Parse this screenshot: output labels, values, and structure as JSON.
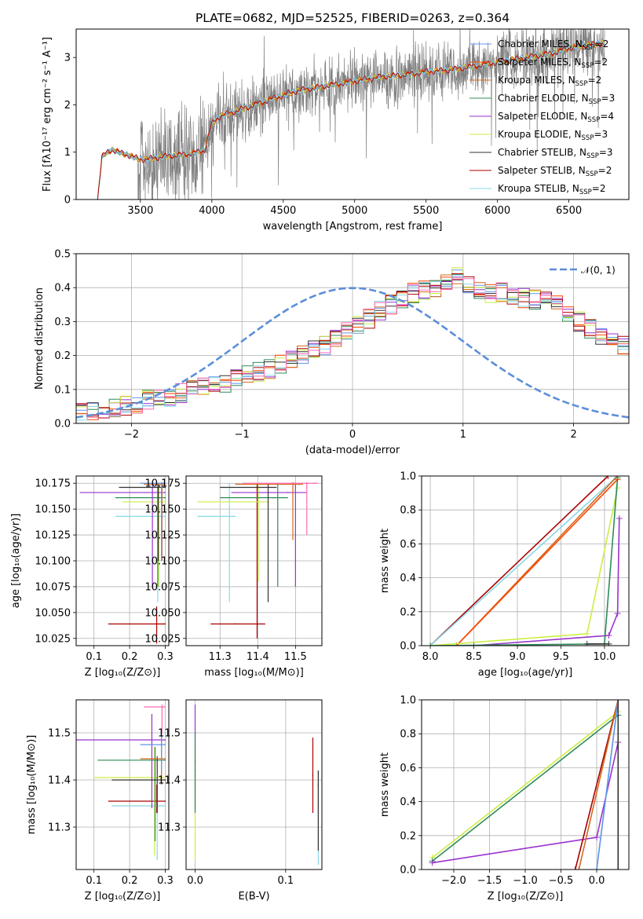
{
  "figure_title": "PLATE=0682, MJD=52525, FIBERID=0263, z=0.364",
  "colors": {
    "chabrier_miles": "#6495ed",
    "salpeter_miles": "#ff4500",
    "kroupa_miles": "#d2691e",
    "chabrier_elodie": "#2e8b57",
    "salpeter_elodie": "#9932cc",
    "kroupa_elodie": "#ccee44",
    "chabrier_stelib": "#333333",
    "salpeter_stelib": "#aa0000",
    "kroupa_stelib": "#88d8e8",
    "pink": "#ff69b4",
    "teal": "#5f9ea0",
    "data_gray": "#808080",
    "normal": "#5b8ed9"
  },
  "chart_data": [
    {
      "id": "spectrum",
      "type": "line",
      "title": "PLATE=0682, MJD=52525, FIBERID=0263, z=0.364",
      "xlabel": "wavelength [Angstrom, rest frame]",
      "ylabel": "Flux [fλ10⁻¹⁷ erg cm⁻² s⁻¹ A⁻¹]",
      "xlim": [
        3050,
        6920
      ],
      "ylim": [
        0,
        3.6
      ],
      "xticks": [
        3500,
        4000,
        4500,
        5000,
        5500,
        6000,
        6500
      ],
      "yticks": [
        0,
        1,
        2,
        3
      ],
      "data_range": [
        3200,
        6750
      ],
      "legend_position": "top-right",
      "series": [
        {
          "name": "Chabrier MILES, N",
          "sub": "SSP",
          "suffix": "=2",
          "color_key": "chabrier_miles"
        },
        {
          "name": "Salpeter MILES, N",
          "sub": "SSP",
          "suffix": "=2",
          "color_key": "salpeter_miles"
        },
        {
          "name": "Kroupa MILES, N",
          "sub": "SSP",
          "suffix": "=2",
          "color_key": "kroupa_miles"
        },
        {
          "name": "Chabrier ELODIE, N",
          "sub": "SSP",
          "suffix": "=3",
          "color_key": "chabrier_elodie"
        },
        {
          "name": "Salpeter ELODIE, N",
          "sub": "SSP",
          "suffix": "=4",
          "color_key": "salpeter_elodie"
        },
        {
          "name": "Kroupa ELODIE, N",
          "sub": "SSP",
          "suffix": "=3",
          "color_key": "kroupa_elodie"
        },
        {
          "name": "Chabrier STELIB, N",
          "sub": "SSP",
          "suffix": "=3",
          "color_key": "chabrier_stelib"
        },
        {
          "name": "Salpeter STELIB, N",
          "sub": "SSP",
          "suffix": "=2",
          "color_key": "salpeter_stelib"
        },
        {
          "name": "Kroupa STELIB, N",
          "sub": "SSP",
          "suffix": "=2",
          "color_key": "kroupa_stelib"
        }
      ],
      "model_continuum": {
        "x": [
          3200,
          3230,
          3260,
          3300,
          3350,
          3400,
          3450,
          3500,
          3550,
          3600,
          3700,
          3800,
          3900,
          3950,
          4000,
          4050,
          4100,
          4200,
          4300,
          4400,
          4500,
          4600,
          4700,
          4800,
          4900,
          5000,
          5100,
          5200,
          5300,
          5400,
          5500,
          5600,
          5700,
          5800,
          5900,
          6000,
          6100,
          6200,
          6300,
          6400,
          6500,
          6600,
          6750
        ],
        "y": [
          0.0,
          0.9,
          0.98,
          1.05,
          1.0,
          0.95,
          0.9,
          0.85,
          0.85,
          0.88,
          0.92,
          0.95,
          1.0,
          1.05,
          1.6,
          1.75,
          1.8,
          1.9,
          2.0,
          2.1,
          2.2,
          2.3,
          2.35,
          2.4,
          2.45,
          2.5,
          2.55,
          2.6,
          2.62,
          2.65,
          2.7,
          2.72,
          2.75,
          2.8,
          2.85,
          2.9,
          2.95,
          3.0,
          3.05,
          3.1,
          3.2,
          3.25,
          3.3
        ]
      }
    },
    {
      "id": "residuals",
      "type": "line",
      "xlabel": "(data-model)/error",
      "ylabel": "Normed distribution",
      "xlim": [
        -2.5,
        2.5
      ],
      "ylim": [
        0,
        0.5
      ],
      "xticks": [
        -2,
        -1,
        0,
        1,
        2
      ],
      "yticks": [
        0.0,
        0.1,
        0.2,
        0.3,
        0.4,
        0.5
      ],
      "grid": true,
      "legend_position": "top-right",
      "legend": "𝒩(0, 1)",
      "bin_width": 0.1,
      "bin_start": -2.5,
      "histogram_base": [
        0.03,
        0.035,
        0.04,
        0.045,
        0.05,
        0.06,
        0.07,
        0.075,
        0.08,
        0.09,
        0.1,
        0.105,
        0.11,
        0.12,
        0.13,
        0.14,
        0.15,
        0.16,
        0.175,
        0.19,
        0.2,
        0.215,
        0.23,
        0.25,
        0.27,
        0.29,
        0.31,
        0.33,
        0.35,
        0.37,
        0.385,
        0.395,
        0.4,
        0.41,
        0.43,
        0.41,
        0.39,
        0.38,
        0.385,
        0.375,
        0.37,
        0.365,
        0.36,
        0.35,
        0.33,
        0.3,
        0.28,
        0.26,
        0.245,
        0.23,
        0.22,
        0.21,
        0.2,
        0.19,
        0.175,
        0.16,
        0.15,
        0.13,
        0.12,
        0.11,
        0.1,
        0.09,
        0.08,
        0.075,
        0.07,
        0.065,
        0.055,
        0.045,
        0.04,
        0.035,
        0.03,
        0.035,
        0.03,
        0.025,
        0.025,
        0.02,
        0.02,
        0.02,
        0.02,
        0.02
      ]
    },
    {
      "id": "age_vs_z",
      "type": "scatter",
      "xlabel": "Z [log₁₀(Z/Z⊙)]",
      "ylabel": "age  [log₁₀(age/yr)]",
      "xlim": [
        0.05,
        0.31
      ],
      "ylim": [
        10.018,
        10.182
      ],
      "xticks": [
        0.1,
        0.2,
        0.3
      ],
      "yticks": [
        10.025,
        10.05,
        10.075,
        10.1,
        10.125,
        10.15,
        10.175
      ],
      "grid": true,
      "points": [
        {
          "x": 0.3,
          "y": 10.039,
          "xerr": [
            0.14,
            0.3
          ],
          "yerr": [
            10.02,
            10.056
          ],
          "color_key": "salpeter_stelib"
        },
        {
          "x": 0.3,
          "y": 10.143,
          "xerr": [
            0.16,
            0.3
          ],
          "yerr": [
            10.06,
            10.175
          ],
          "color_key": "kroupa_stelib"
        },
        {
          "x": 0.3,
          "y": 10.157,
          "xerr": [
            0.18,
            0.3
          ],
          "yerr": [
            10.075,
            10.175
          ],
          "color_key": "kroupa_elodie"
        },
        {
          "x": 0.3,
          "y": 10.161,
          "xerr": [
            0.16,
            0.3
          ],
          "yerr": [
            10.075,
            10.175
          ],
          "color_key": "chabrier_elodie"
        },
        {
          "x": 0.3,
          "y": 10.166,
          "xerr": [
            0.06,
            0.3
          ],
          "yerr": [
            10.074,
            10.175
          ],
          "color_key": "salpeter_elodie"
        },
        {
          "x": 0.3,
          "y": 10.171,
          "xerr": [
            0.17,
            0.3
          ],
          "yerr": [
            10.1,
            10.175
          ],
          "color_key": "chabrier_stelib"
        },
        {
          "x": 0.3,
          "y": 10.174,
          "xerr": [
            0.24,
            0.3
          ],
          "yerr": [
            10.1,
            10.176
          ],
          "color_key": "kroupa_miles"
        },
        {
          "x": 0.3,
          "y": 10.175,
          "xerr": [
            0.23,
            0.3
          ],
          "yerr": [
            10.1,
            10.176
          ],
          "color_key": "chabrier_miles"
        }
      ]
    },
    {
      "id": "age_vs_mass",
      "type": "scatter",
      "xlabel": "mass [log₁₀(M/M⊙)]",
      "ylabel": "",
      "xlim": [
        11.21,
        11.57
      ],
      "ylim": [
        10.018,
        10.182
      ],
      "xticks": [
        11.3,
        11.4,
        11.5
      ],
      "yticks": [
        10.025,
        10.05,
        10.075,
        10.1,
        10.125,
        10.15,
        10.175
      ],
      "grid": true,
      "points": [
        {
          "x": 11.34,
          "y": 10.039,
          "xerr": [
            11.275,
            11.42
          ],
          "yerr": [
            10.025,
            10.175
          ],
          "color_key": "salpeter_stelib"
        },
        {
          "x": 11.34,
          "y": 10.143,
          "xerr": [
            11.24,
            11.34
          ],
          "yerr": [
            10.06,
            10.175
          ],
          "color_key": "kroupa_stelib"
        },
        {
          "x": 11.38,
          "y": 10.157,
          "xerr": [
            11.24,
            11.43
          ],
          "yerr": [
            10.08,
            10.175
          ],
          "color_key": "kroupa_elodie"
        },
        {
          "x": 11.44,
          "y": 10.161,
          "xerr": [
            11.3,
            11.48
          ],
          "yerr": [
            10.075,
            10.175
          ],
          "color_key": "chabrier_elodie"
        },
        {
          "x": 11.48,
          "y": 10.166,
          "xerr": [
            11.33,
            11.53
          ],
          "yerr": [
            10.075,
            10.175
          ],
          "color_key": "salpeter_elodie"
        },
        {
          "x": 11.4,
          "y": 10.171,
          "xerr": [
            11.3,
            11.45
          ],
          "yerr": [
            10.06,
            10.175
          ],
          "color_key": "chabrier_stelib"
        },
        {
          "x": 11.51,
          "y": 10.174,
          "xerr": [
            11.34,
            11.52
          ],
          "yerr": [
            10.12,
            10.176
          ],
          "color_key": "kroupa_miles"
        },
        {
          "x": 11.55,
          "y": 10.175,
          "xerr": [
            11.36,
            11.56
          ],
          "yerr": [
            10.125,
            10.176
          ],
          "color_key": "pink"
        }
      ]
    },
    {
      "id": "weight_vs_age",
      "type": "line",
      "xlabel": "age  [log₁₀(age/yr)]",
      "ylabel": "mass weight",
      "xlim": [
        7.9,
        10.28
      ],
      "ylim": [
        0,
        1.0
      ],
      "xticks": [
        8.0,
        8.5,
        9.0,
        9.5,
        10.0
      ],
      "yticks": [
        0.0,
        0.2,
        0.4,
        0.6,
        0.8,
        1.0
      ],
      "grid": true,
      "series": [
        {
          "color_key": "salpeter_stelib",
          "x": [
            8.0,
            10.04
          ],
          "y": [
            0.0,
            1.0
          ]
        },
        {
          "color_key": "kroupa_stelib",
          "x": [
            8.0,
            10.15
          ],
          "y": [
            0.0,
            1.0
          ]
        },
        {
          "color_key": "kroupa_miles",
          "x": [
            8.3,
            10.15
          ],
          "y": [
            0.0,
            1.0
          ]
        },
        {
          "color_key": "salpeter_miles",
          "x": [
            8.3,
            10.15
          ],
          "y": [
            0.0,
            0.98
          ]
        },
        {
          "color_key": "kroupa_elodie",
          "x": [
            8.0,
            9.8,
            10.15
          ],
          "y": [
            0.0,
            0.07,
            0.93
          ]
        },
        {
          "color_key": "salpeter_elodie",
          "x": [
            8.5,
            10.05,
            10.15,
            10.17
          ],
          "y": [
            0.0,
            0.06,
            0.19,
            0.75
          ]
        },
        {
          "color_key": "chabrier_elodie",
          "x": [
            8.0,
            10.0,
            10.15
          ],
          "y": [
            0.0,
            0.01,
            0.99
          ]
        },
        {
          "color_key": "chabrier_stelib",
          "x": [
            9.8,
            10.05
          ],
          "y": [
            0.01,
            0.01
          ]
        }
      ]
    },
    {
      "id": "mass_vs_z",
      "type": "scatter",
      "xlabel": "Z [log₁₀(Z/Z⊙)]",
      "ylabel": "mass [log₁₀(M/M⊙)]",
      "xlim": [
        0.05,
        0.31
      ],
      "ylim": [
        11.21,
        11.57
      ],
      "xticks": [
        0.1,
        0.2,
        0.3
      ],
      "yticks": [
        11.3,
        11.4,
        11.5
      ],
      "grid": true,
      "points": [
        {
          "x": 0.3,
          "y": 11.355,
          "xerr": [
            0.14,
            0.3
          ],
          "yerr": [
            11.33,
            11.39
          ],
          "color_key": "salpeter_stelib"
        },
        {
          "x": 0.3,
          "y": 11.345,
          "xerr": [
            0.15,
            0.3
          ],
          "yerr": [
            11.23,
            11.4
          ],
          "color_key": "kroupa_stelib"
        },
        {
          "x": 0.3,
          "y": 11.405,
          "xerr": [
            0.1,
            0.3
          ],
          "yerr": [
            11.24,
            11.47
          ],
          "color_key": "kroupa_elodie"
        },
        {
          "x": 0.3,
          "y": 11.442,
          "xerr": [
            0.11,
            0.3
          ],
          "yerr": [
            11.27,
            11.47
          ],
          "color_key": "chabrier_elodie"
        },
        {
          "x": 0.3,
          "y": 11.485,
          "xerr": [
            0.05,
            0.3
          ],
          "yerr": [
            11.34,
            11.54
          ],
          "color_key": "salpeter_elodie"
        },
        {
          "x": 0.3,
          "y": 11.4,
          "xerr": [
            0.15,
            0.3
          ],
          "yerr": [
            11.33,
            11.45
          ],
          "color_key": "chabrier_stelib"
        },
        {
          "x": 0.3,
          "y": 11.445,
          "xerr": [
            0.23,
            0.3
          ],
          "yerr": [
            11.39,
            11.5
          ],
          "color_key": "kroupa_miles"
        },
        {
          "x": 0.3,
          "y": 11.555,
          "xerr": [
            0.24,
            0.3
          ],
          "yerr": [
            11.5,
            11.56
          ],
          "color_key": "pink"
        },
        {
          "x": 0.3,
          "y": 11.475,
          "xerr": [
            0.23,
            0.3
          ],
          "yerr": [
            11.42,
            11.5
          ],
          "color_key": "chabrier_miles"
        }
      ]
    },
    {
      "id": "mass_vs_ebv",
      "type": "scatter",
      "xlabel": "E(B-V)",
      "ylabel": "",
      "xlim": [
        -0.01,
        0.14
      ],
      "ylim": [
        11.21,
        11.57
      ],
      "xticks": [
        0.0,
        0.1
      ],
      "yticks": [
        11.3,
        11.4,
        11.5
      ],
      "grid": true,
      "points": [
        {
          "x": 0.0,
          "y": 11.44,
          "yerr": [
            11.34,
            11.56
          ],
          "color_key": "salpeter_elodie"
        },
        {
          "x": 0.0,
          "y": 11.38,
          "yerr": [
            11.23,
            11.47
          ],
          "color_key": "kroupa_elodie"
        },
        {
          "x": 0.0,
          "y": 11.42,
          "yerr": [
            11.33,
            11.5
          ],
          "color_key": "chabrier_elodie"
        },
        {
          "x": 0.13,
          "y": 11.41,
          "yerr": [
            11.33,
            11.49
          ],
          "color_key": "salpeter_stelib"
        },
        {
          "x": 0.136,
          "y": 11.35,
          "yerr": [
            11.22,
            11.42
          ],
          "color_key": "kroupa_stelib"
        },
        {
          "x": 0.136,
          "y": 11.39,
          "yerr": [
            11.25,
            11.42
          ],
          "color_key": "chabrier_stelib"
        }
      ]
    },
    {
      "id": "weight_vs_z",
      "type": "line",
      "xlabel": "Z [log₁₀(Z/Z⊙)]",
      "ylabel": "mass weight",
      "xlim": [
        -2.45,
        0.45
      ],
      "ylim": [
        0,
        1.0
      ],
      "xticks": [
        -2.0,
        -1.5,
        -1.0,
        -0.5,
        0.0
      ],
      "yticks": [
        0.0,
        0.2,
        0.4,
        0.6,
        0.8,
        1.0
      ],
      "grid": true,
      "series": [
        {
          "color_key": "kroupa_elodie",
          "x": [
            -2.3,
            0.3
          ],
          "y": [
            0.07,
            0.93
          ]
        },
        {
          "color_key": "chabrier_elodie",
          "x": [
            -2.3,
            0.3
          ],
          "y": [
            0.05,
            0.91
          ]
        },
        {
          "color_key": "salpeter_elodie",
          "x": [
            -2.3,
            0.0,
            0.3
          ],
          "y": [
            0.04,
            0.19,
            0.75
          ]
        },
        {
          "color_key": "salpeter_stelib",
          "x": [
            -0.3,
            0.3
          ],
          "y": [
            0.0,
            1.0
          ]
        },
        {
          "color_key": "kroupa_miles",
          "x": [
            -0.25,
            0.3
          ],
          "y": [
            0.0,
            1.0
          ]
        },
        {
          "color_key": "kroupa_stelib",
          "x": [
            0.0,
            0.3
          ],
          "y": [
            0.0,
            1.0
          ]
        },
        {
          "color_key": "chabrier_miles",
          "x": [
            0.0,
            0.3
          ],
          "y": [
            0.0,
            1.0
          ]
        },
        {
          "color_key": "chabrier_stelib",
          "x": [
            0.3,
            0.3
          ],
          "y": [
            0.0,
            1.0
          ]
        }
      ]
    }
  ]
}
